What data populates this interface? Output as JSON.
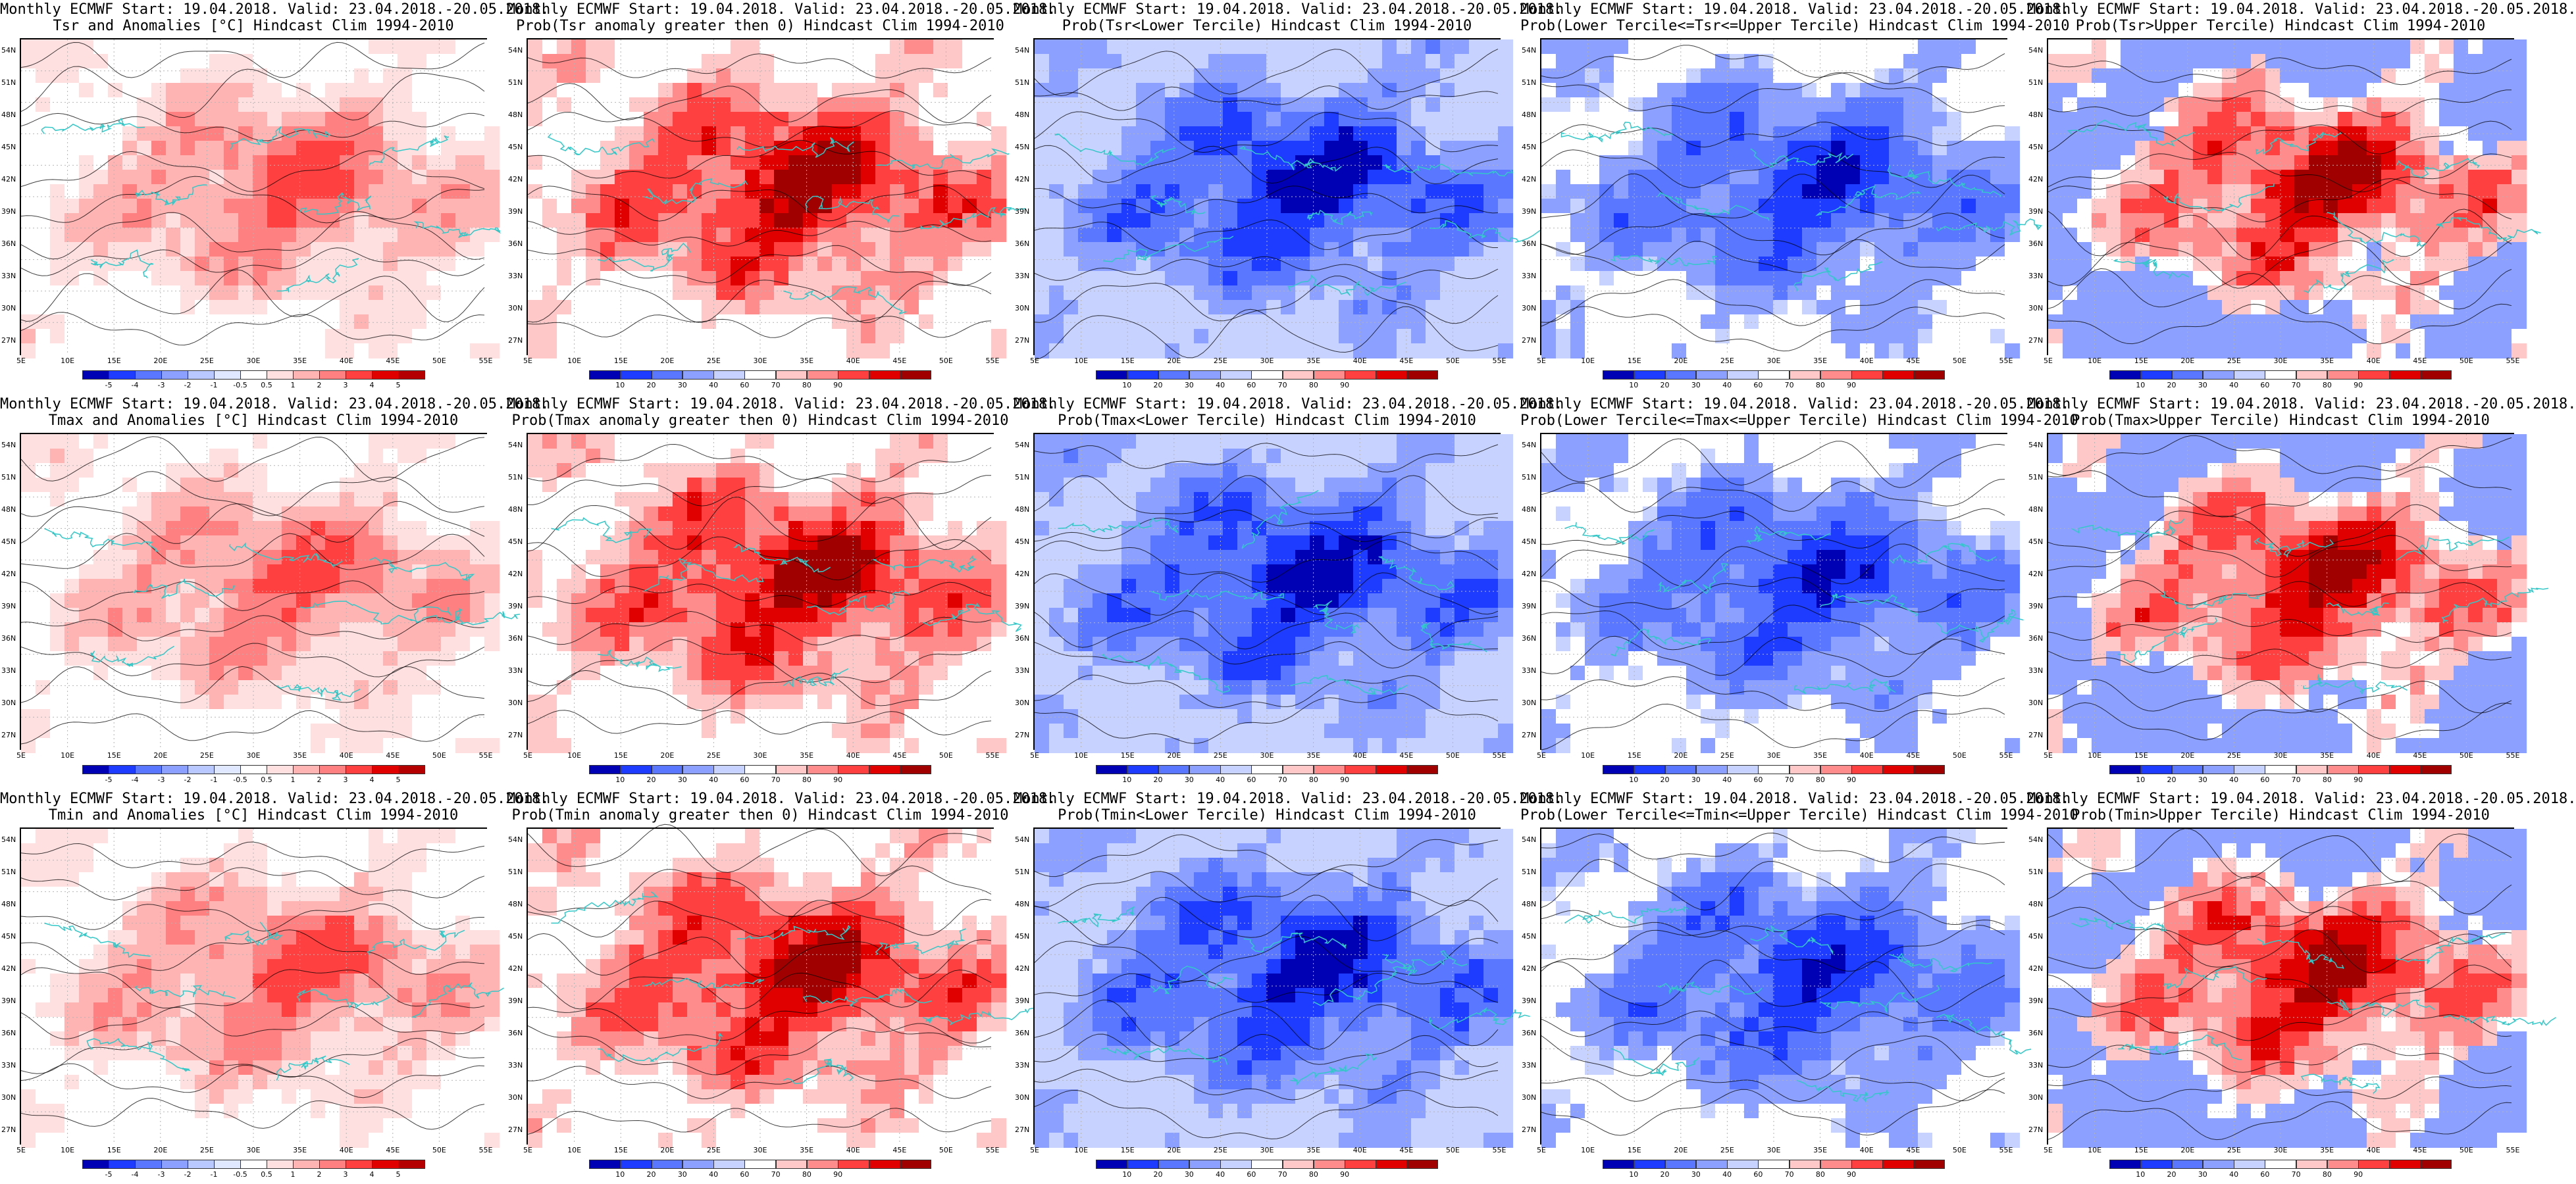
{
  "panels": [
    {
      "line1": "Monthly ECMWF Start: 19.04.2018. Valid: 23.04.2018.-20.05.2018.",
      "line2": "Tsr and Anomalies [°C] Hindcast Clim 1994-2010",
      "kind": "anomaly",
      "pattern": "warm"
    },
    {
      "line1": "Monthly ECMWF Start: 19.04.2018. Valid: 23.04.2018.-20.05.2018.",
      "line2": "Prob(Tsr anomaly greater then 0) Hindcast Clim 1994-2010",
      "kind": "prob",
      "pattern": "hot"
    },
    {
      "line1": "Monthly ECMWF Start: 19.04.2018. Valid: 23.04.2018.-20.05.2018.",
      "line2": "Prob(Tsr<Lower Tercile) Hindcast Clim 1994-2010",
      "kind": "prob",
      "pattern": "cold"
    },
    {
      "line1": "Monthly ECMWF Start: 19.04.2018. Valid: 23.04.2018.-20.05.2018.",
      "line2": "Prob(Lower Tercile<=Tsr<=Upper Tercile) Hindcast Clim 1994-2010",
      "kind": "prob",
      "pattern": "mid"
    },
    {
      "line1": "Monthly ECMWF Start: 19.04.2018. Valid: 23.04.2018.-20.05.2018.",
      "line2": "Prob(Tsr>Upper Tercile) Hindcast Clim 1994-2010",
      "kind": "prob",
      "pattern": "upper"
    },
    {
      "line1": "Monthly ECMWF Start: 19.04.2018. Valid: 23.04.2018.-20.05.2018.",
      "line2": "Tmax and Anomalies [°C] Hindcast Clim 1994-2010",
      "kind": "anomaly",
      "pattern": "warm"
    },
    {
      "line1": "Monthly ECMWF Start: 19.04.2018. Valid: 23.04.2018.-20.05.2018.",
      "line2": "Prob(Tmax anomaly greater then 0) Hindcast Clim 1994-2010",
      "kind": "prob",
      "pattern": "hot"
    },
    {
      "line1": "Monthly ECMWF Start: 19.04.2018. Valid: 23.04.2018.-20.05.2018.",
      "line2": "Prob(Tmax<Lower Tercile) Hindcast Clim 1994-2010",
      "kind": "prob",
      "pattern": "cold"
    },
    {
      "line1": "Monthly ECMWF Start: 19.04.2018. Valid: 23.04.2018.-20.05.2018.",
      "line2": "Prob(Lower Tercile<=Tmax<=Upper Tercile) Hindcast Clim 1994-2010",
      "kind": "prob",
      "pattern": "mid"
    },
    {
      "line1": "Monthly ECMWF Start: 19.04.2018. Valid: 23.04.2018.-20.05.2018.",
      "line2": "Prob(Tmax>Upper Tercile) Hindcast Clim 1994-2010",
      "kind": "prob",
      "pattern": "upper"
    },
    {
      "line1": "Monthly ECMWF Start: 19.04.2018. Valid: 23.04.2018.-20.05.2018.",
      "line2": "Tmin and Anomalies [°C] Hindcast Clim 1994-2010",
      "kind": "anomaly",
      "pattern": "warm"
    },
    {
      "line1": "Monthly ECMWF Start: 19.04.2018. Valid: 23.04.2018.-20.05.2018.",
      "line2": "Prob(Tmin anomaly greater then 0) Hindcast Clim 1994-2010",
      "kind": "prob",
      "pattern": "hot"
    },
    {
      "line1": "Monthly ECMWF Start: 19.04.2018. Valid: 23.04.2018.-20.05.2018.",
      "line2": "Prob(Tmin<Lower Tercile) Hindcast Clim 1994-2010",
      "kind": "prob",
      "pattern": "cold"
    },
    {
      "line1": "Monthly ECMWF Start: 19.04.2018. Valid: 23.04.2018.-20.05.2018.",
      "line2": "Prob(Lower Tercile<=Tmin<=Upper Tercile) Hindcast Clim 1994-2010",
      "kind": "prob",
      "pattern": "mid"
    },
    {
      "line1": "Monthly ECMWF Start: 19.04.2018. Valid: 23.04.2018.-20.05.2018.",
      "line2": "Prob(Tmin>Upper Tercile) Hindcast Clim 1994-2010",
      "kind": "prob",
      "pattern": "upper"
    }
  ],
  "lat_labels": [
    "54N",
    "51N",
    "48N",
    "45N",
    "42N",
    "39N",
    "36N",
    "33N",
    "30N",
    "27N"
  ],
  "lon_labels": [
    "5E",
    "10E",
    "15E",
    "20E",
    "25E",
    "30E",
    "35E",
    "40E",
    "45E",
    "50E",
    "55E"
  ],
  "colorbars": {
    "anomaly": {
      "ticks": [
        "-5",
        "-4",
        "-3",
        "-2",
        "-1",
        "-0.5",
        "0.5",
        "1",
        "2",
        "3",
        "4",
        "5"
      ],
      "colors": [
        "#0000b4",
        "#1e3cff",
        "#5a78ff",
        "#8ca0ff",
        "#b9c8ff",
        "#e0e8ff",
        "#ffffff",
        "#ffe0e0",
        "#ffb4b4",
        "#ff8080",
        "#ff4040",
        "#e00000",
        "#b40000"
      ]
    },
    "prob": {
      "ticks": [
        "10",
        "20",
        "30",
        "40",
        "60",
        "70",
        "80",
        "90"
      ],
      "colors": [
        "#0000b4",
        "#1e3cff",
        "#5a78ff",
        "#8ca0ff",
        "#c8d2ff",
        "#ffffff",
        "#ffc8c8",
        "#ff8c8c",
        "#ff4040",
        "#e00000",
        "#a00000"
      ]
    }
  },
  "palette": {
    "coast": "#32c8c8",
    "contour": "#000000",
    "grid": "#b4b4b4"
  }
}
